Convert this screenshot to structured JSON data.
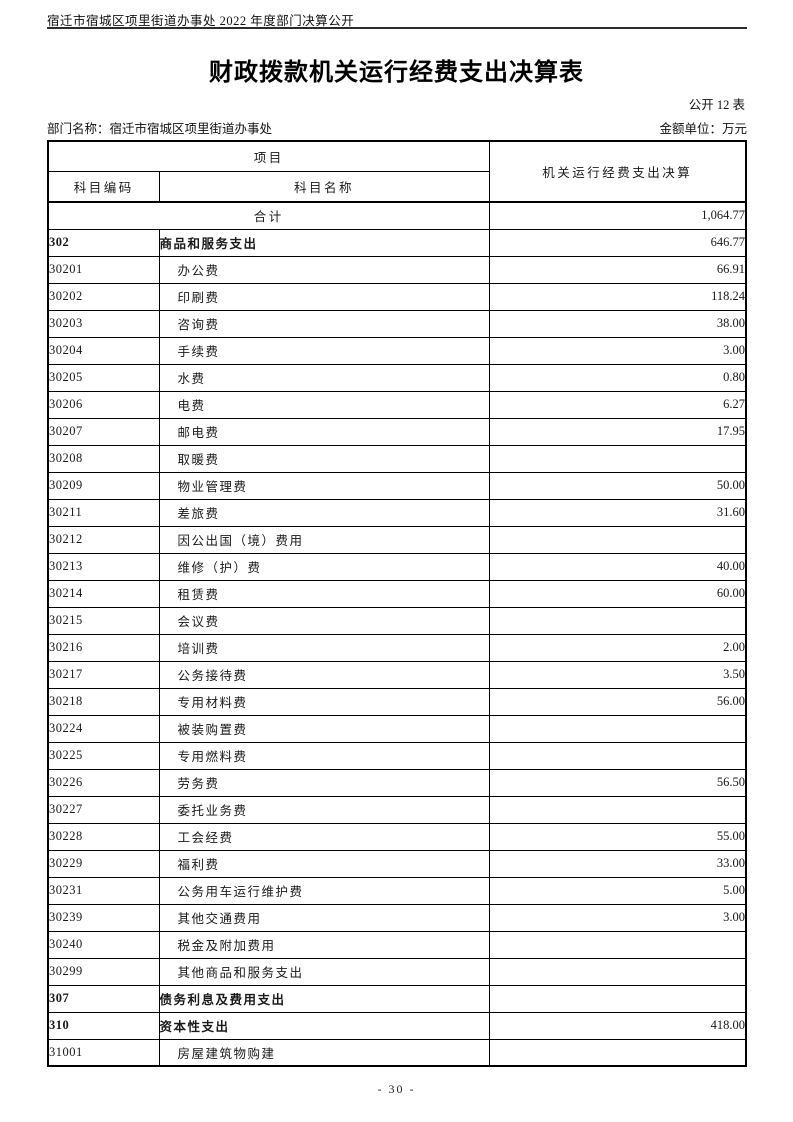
{
  "document": {
    "top_header": "宿迁市宿城区项里街道办事处 2022 年度部门决算公开",
    "title": "财政拨款机关运行经费支出决算表",
    "table_number": "公开 12 表",
    "department": "部门名称：宿迁市宿城区项里街道办事处",
    "amount_unit": "金额单位：万元",
    "page_number": "- 30 -"
  },
  "table": {
    "columns": {
      "project_group": "项目",
      "subject_code": "科目编码",
      "subject_name": "科目名称",
      "value": "机关运行经费支出决算"
    },
    "rows": [
      {
        "code": "",
        "name": "合计",
        "value": "1,064.77",
        "level": "total"
      },
      {
        "code": "302",
        "name": "商品和服务支出",
        "value": "646.77",
        "level": "section"
      },
      {
        "code": "30201",
        "name": "办公费",
        "value": "66.91",
        "level": "item"
      },
      {
        "code": "30202",
        "name": "印刷费",
        "value": "118.24",
        "level": "item"
      },
      {
        "code": "30203",
        "name": "咨询费",
        "value": "38.00",
        "level": "item"
      },
      {
        "code": "30204",
        "name": "手续费",
        "value": "3.00",
        "level": "item"
      },
      {
        "code": "30205",
        "name": "水费",
        "value": "0.80",
        "level": "item"
      },
      {
        "code": "30206",
        "name": "电费",
        "value": "6.27",
        "level": "item"
      },
      {
        "code": "30207",
        "name": "邮电费",
        "value": "17.95",
        "level": "item"
      },
      {
        "code": "30208",
        "name": "取暖费",
        "value": "",
        "level": "item"
      },
      {
        "code": "30209",
        "name": "物业管理费",
        "value": "50.00",
        "level": "item"
      },
      {
        "code": "30211",
        "name": "差旅费",
        "value": "31.60",
        "level": "item"
      },
      {
        "code": "30212",
        "name": "因公出国（境）费用",
        "value": "",
        "level": "item"
      },
      {
        "code": "30213",
        "name": "维修（护）费",
        "value": "40.00",
        "level": "item"
      },
      {
        "code": "30214",
        "name": "租赁费",
        "value": "60.00",
        "level": "item"
      },
      {
        "code": "30215",
        "name": "会议费",
        "value": "",
        "level": "item"
      },
      {
        "code": "30216",
        "name": "培训费",
        "value": "2.00",
        "level": "item"
      },
      {
        "code": "30217",
        "name": "公务接待费",
        "value": "3.50",
        "level": "item"
      },
      {
        "code": "30218",
        "name": "专用材料费",
        "value": "56.00",
        "level": "item"
      },
      {
        "code": "30224",
        "name": "被装购置费",
        "value": "",
        "level": "item"
      },
      {
        "code": "30225",
        "name": "专用燃料费",
        "value": "",
        "level": "item"
      },
      {
        "code": "30226",
        "name": "劳务费",
        "value": "56.50",
        "level": "item"
      },
      {
        "code": "30227",
        "name": "委托业务费",
        "value": "",
        "level": "item"
      },
      {
        "code": "30228",
        "name": "工会经费",
        "value": "55.00",
        "level": "item"
      },
      {
        "code": "30229",
        "name": "福利费",
        "value": "33.00",
        "level": "item"
      },
      {
        "code": "30231",
        "name": "公务用车运行维护费",
        "value": "5.00",
        "level": "item"
      },
      {
        "code": "30239",
        "name": "其他交通费用",
        "value": "3.00",
        "level": "item"
      },
      {
        "code": "30240",
        "name": "税金及附加费用",
        "value": "",
        "level": "item"
      },
      {
        "code": "30299",
        "name": "其他商品和服务支出",
        "value": "",
        "level": "item"
      },
      {
        "code": "307",
        "name": "债务利息及费用支出",
        "value": "",
        "level": "section"
      },
      {
        "code": "310",
        "name": "资本性支出",
        "value": "418.00",
        "level": "section"
      },
      {
        "code": "31001",
        "name": "房屋建筑物购建",
        "value": "",
        "level": "item"
      }
    ]
  },
  "colors": {
    "text": "#1a1a1a",
    "border": "#000000",
    "background": "#ffffff"
  }
}
